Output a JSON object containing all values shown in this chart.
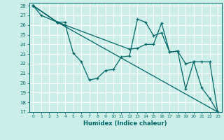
{
  "xlabel": "Humidex (Indice chaleur)",
  "bg_color": "#cceee8",
  "grid_color": "#ffffff",
  "line_color": "#006666",
  "xlim": [
    -0.5,
    23.5
  ],
  "ylim": [
    17,
    28.3
  ],
  "yticks": [
    17,
    18,
    19,
    20,
    21,
    22,
    23,
    24,
    25,
    26,
    27,
    28
  ],
  "xticks": [
    0,
    1,
    2,
    3,
    4,
    5,
    6,
    7,
    8,
    9,
    10,
    11,
    12,
    13,
    14,
    15,
    16,
    17,
    18,
    19,
    20,
    21,
    22,
    23
  ],
  "lines": [
    {
      "x": [
        0,
        1,
        3,
        4
      ],
      "y": [
        28,
        27,
        26.3,
        26.3
      ]
    },
    {
      "x": [
        0,
        3,
        4,
        5,
        6,
        7,
        8,
        9,
        10,
        11,
        12,
        13,
        14,
        15,
        16,
        17,
        18,
        19,
        20,
        21,
        22,
        23
      ],
      "y": [
        28,
        26.3,
        26.0,
        23.1,
        22.2,
        20.3,
        20.5,
        21.3,
        21.4,
        22.7,
        22.8,
        26.6,
        26.3,
        24.9,
        25.2,
        23.2,
        23.3,
        22.0,
        22.2,
        22.2,
        22.2,
        17.0
      ]
    },
    {
      "x": [
        0,
        3,
        23
      ],
      "y": [
        28,
        26.3,
        17.0
      ]
    },
    {
      "x": [
        0,
        3,
        12,
        13,
        14,
        15,
        16,
        17,
        18,
        19,
        20,
        21,
        22,
        23
      ],
      "y": [
        28,
        26.3,
        23.5,
        23.6,
        24.0,
        24.0,
        26.2,
        23.2,
        23.3,
        19.4,
        22.2,
        19.5,
        18.4,
        17.0
      ]
    }
  ]
}
